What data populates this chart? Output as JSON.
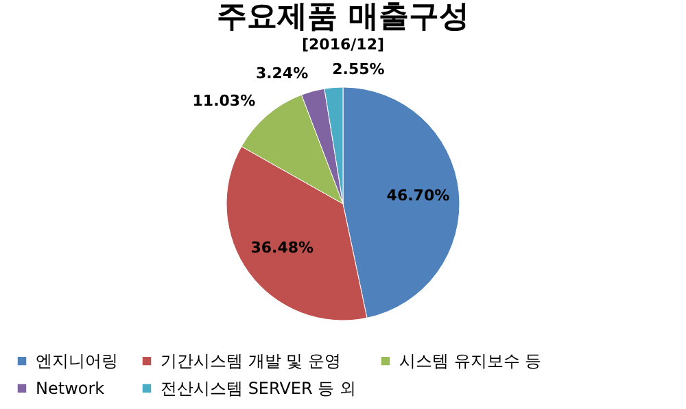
{
  "chart_data": {
    "type": "pie",
    "title": "주요제품 매출구성",
    "subtitle": "[2016/12]",
    "categories": [
      "엔지니어링",
      "기간시스템 개발 및 운영",
      "시스템 유지보수 등",
      "Network",
      "전산시스템 SERVER 등 외"
    ],
    "values": [
      46.7,
      36.48,
      11.03,
      3.24,
      2.55
    ],
    "colors": [
      "#4f81bd",
      "#c0504d",
      "#9bbb59",
      "#8064a2",
      "#4bacc6"
    ],
    "value_labels": [
      "46.70%",
      "36.48%",
      "11.03%",
      "3.24%",
      "2.55%"
    ],
    "legend": "bottom"
  }
}
